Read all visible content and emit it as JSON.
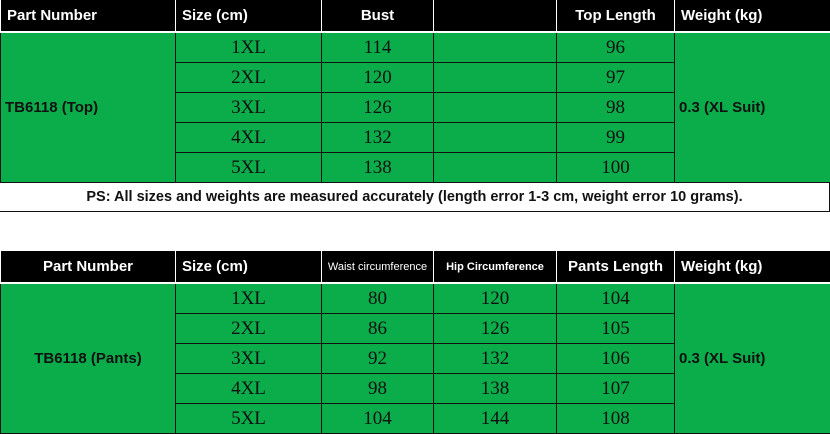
{
  "top_table": {
    "headers": [
      "Part Number",
      "Size (cm)",
      "Bust",
      "",
      "Top Length",
      "Weight (kg)"
    ],
    "part_number": "TB6118 (Top)",
    "weight": "0.3 (XL Suit)",
    "rows": [
      {
        "size": "1XL",
        "bust": "114",
        "length": "96"
      },
      {
        "size": "2XL",
        "bust": "120",
        "length": "97"
      },
      {
        "size": "3XL",
        "bust": "126",
        "length": "98"
      },
      {
        "size": "4XL",
        "bust": "132",
        "length": "99"
      },
      {
        "size": "5XL",
        "bust": "138",
        "length": "100"
      }
    ]
  },
  "note": "PS: All sizes and weights are measured accurately (length error 1-3 cm, weight error 10 grams).",
  "pants_table": {
    "headers": [
      "Part Number",
      "Size (cm)",
      "Waist circumference",
      "Hip Circumference",
      "Pants Length",
      "Weight (kg)"
    ],
    "part_number": "TB6118 (Pants)",
    "weight": "0.3 (XL Suit)",
    "rows": [
      {
        "size": "1XL",
        "waist": "80",
        "hip": "120",
        "length": "104"
      },
      {
        "size": "2XL",
        "waist": "86",
        "hip": "126",
        "length": "105"
      },
      {
        "size": "3XL",
        "waist": "92",
        "hip": "132",
        "length": "106"
      },
      {
        "size": "4XL",
        "waist": "98",
        "hip": "138",
        "length": "107"
      },
      {
        "size": "5XL",
        "waist": "104",
        "hip": "144",
        "length": "108"
      }
    ]
  },
  "colors": {
    "header_bg": "#000000",
    "row_bg": "#0aad4a"
  }
}
